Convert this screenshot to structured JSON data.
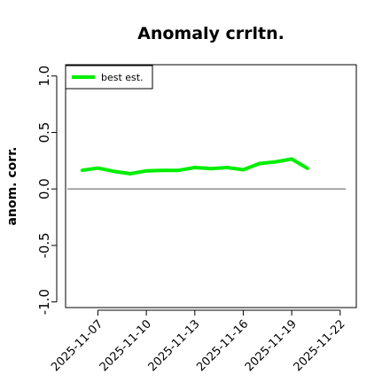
{
  "chart_data": {
    "type": "line",
    "title": "Anomaly crrltn.",
    "xlabel": "",
    "ylabel": "anom. corr.",
    "x": [
      "2025-11-06",
      "2025-11-07",
      "2025-11-08",
      "2025-11-09",
      "2025-11-10",
      "2025-11-11",
      "2025-11-12",
      "2025-11-13",
      "2025-11-14",
      "2025-11-15",
      "2025-11-16",
      "2025-11-17",
      "2025-11-18",
      "2025-11-19",
      "2025-11-20"
    ],
    "xlim": [
      "2025-11-05",
      "2025-11-23"
    ],
    "ylim": [
      -1.05,
      1.1
    ],
    "xticks": [
      "2025-11-07",
      "2025-11-10",
      "2025-11-13",
      "2025-11-16",
      "2025-11-19",
      "2025-11-22"
    ],
    "yticks": [
      -1.0,
      -0.5,
      0.0,
      0.5,
      1.0
    ],
    "ytick_labels": [
      "-1.0",
      "-0.5",
      "0.0",
      "0.5",
      "1.0"
    ],
    "reference_line": 0.0,
    "series": [
      {
        "name": "best est.",
        "color": "#00ee00",
        "values": [
          0.165,
          0.185,
          0.155,
          0.135,
          0.16,
          0.165,
          0.165,
          0.19,
          0.18,
          0.19,
          0.17,
          0.225,
          0.24,
          0.265,
          0.18
        ]
      }
    ],
    "legend": "top-left",
    "grid": false
  }
}
